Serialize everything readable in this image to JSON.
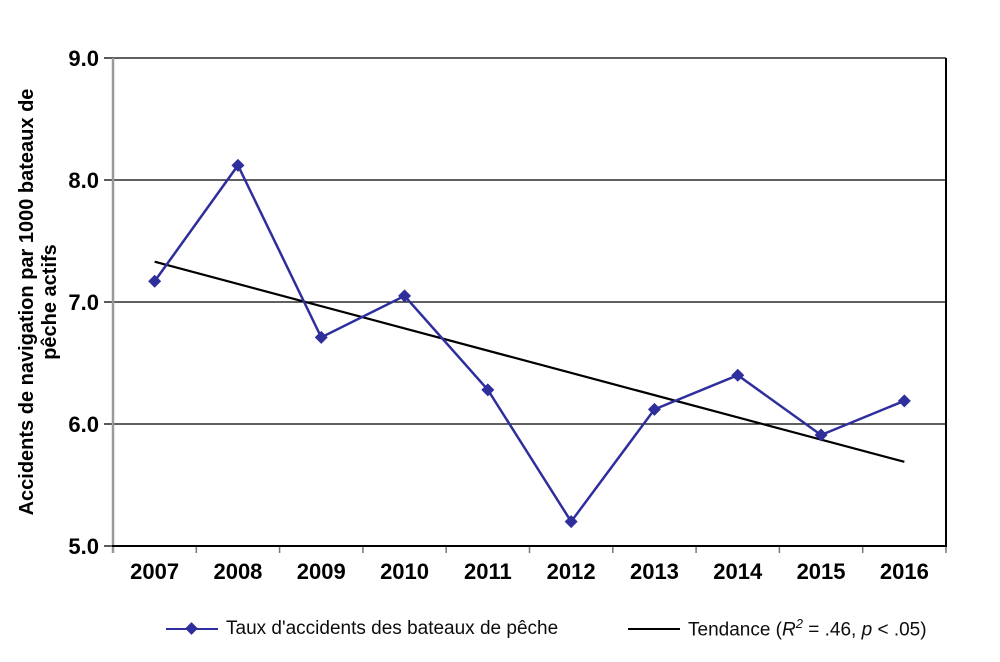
{
  "chart": {
    "ylabel_line1": "Accidents de navigation par 1000 bateaux de",
    "ylabel_line2": "pêche actifs",
    "legend": {
      "series_label": "Taux d'accidents des bateaux de pêche",
      "trend": {
        "prefix": "Tendance (",
        "r": "R",
        "r_sup": "2",
        "mid": " = .46, ",
        "p": "p",
        "suffix": " < .05)"
      }
    }
  },
  "chart_data": {
    "type": "line",
    "title": "",
    "xlabel": "",
    "ylabel": "Accidents de navigation par 1000 bateaux de pêche actifs",
    "categories": [
      "2007",
      "2008",
      "2009",
      "2010",
      "2011",
      "2012",
      "2013",
      "2014",
      "2015",
      "2016"
    ],
    "series": [
      {
        "name": "Taux d'accidents des bateaux de pêche",
        "values": [
          7.17,
          8.12,
          6.71,
          7.05,
          6.28,
          5.2,
          6.12,
          6.4,
          5.91,
          6.19
        ],
        "color": "#2e2e9c",
        "marker": "diamond"
      },
      {
        "name": "Tendance (R² = .46, p < .05)",
        "kind": "trendline",
        "start_value": 7.33,
        "end_value": 5.69,
        "r_squared": ".46",
        "p": "< .05",
        "color": "#000000"
      }
    ],
    "ylim": [
      5.0,
      9.0
    ],
    "ytick_values": [
      5.0,
      6.0,
      7.0,
      8.0,
      9.0
    ],
    "ytick_labels": [
      "5.0",
      "6.0",
      "7.0",
      "8.0",
      "9.0"
    ],
    "grid": true,
    "legend_position": "bottom",
    "colors": {
      "gridline": "#000000",
      "axis_vertical": "#999999",
      "axis_bottom": "#000000",
      "frame_right": "#000000",
      "tick": "#777777"
    }
  }
}
